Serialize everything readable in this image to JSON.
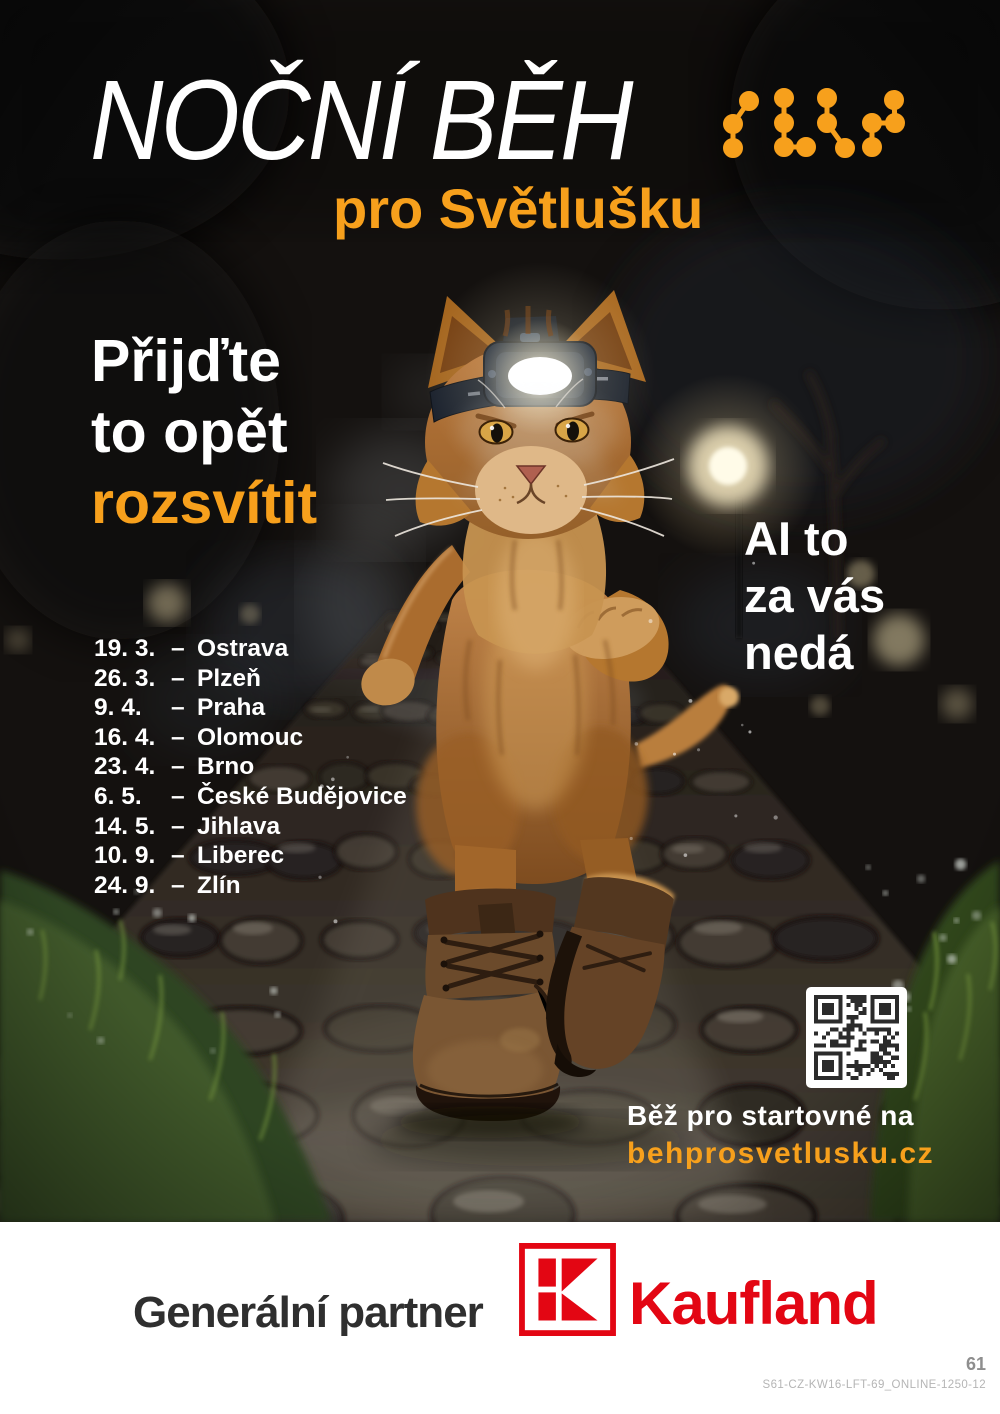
{
  "poster": {
    "title": "NOČNÍ BĚH",
    "subtitle": "pro Světlušku",
    "tagline": {
      "line1": "Přijďte",
      "line2": "to opět",
      "line3": "rozsvítit"
    },
    "dash": "–",
    "events": [
      {
        "date": "19. 3.",
        "city": "Ostrava"
      },
      {
        "date": "26. 3.",
        "city": "Plzeň"
      },
      {
        "date": "9. 4.",
        "city": "Praha"
      },
      {
        "date": "16. 4.",
        "city": "Olomouc"
      },
      {
        "date": "23. 4.",
        "city": "Brno"
      },
      {
        "date": "6. 5.",
        "city": "České Budějovice"
      },
      {
        "date": "14. 5.",
        "city": "Jihlava"
      },
      {
        "date": "10. 9.",
        "city": "Liberec"
      },
      {
        "date": "24. 9.",
        "city": "Zlín"
      }
    ],
    "claim": {
      "line1": "AI to",
      "line2": "za vás",
      "line3": "nedá"
    },
    "cta": {
      "line1": "Běž pro startovné na",
      "url": "behprosvetlusku.cz"
    }
  },
  "footer": {
    "partner_label": "Generální partner",
    "brand_name": "Kaufland",
    "page_number": "61",
    "print_code": "S61-CZ-KW16-LFT-69_ONLINE-1250-12"
  },
  "colors": {
    "accent_orange": "#F7A01C",
    "kaufland_red": "#E30613"
  },
  "icons": {
    "firefly_trail": "firefly-trail-icon",
    "headlamp": "headlamp-icon",
    "qr": "qr-code",
    "kaufland_k": "kaufland-k-logo"
  }
}
